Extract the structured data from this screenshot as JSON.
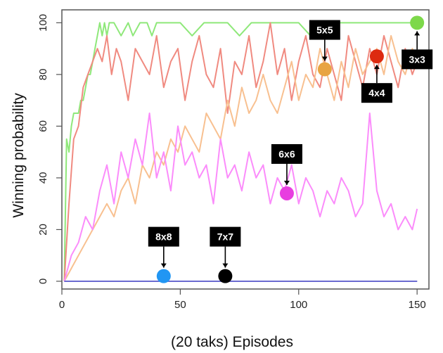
{
  "chart_data": {
    "type": "line",
    "xlabel": "(20 taks) Episodes",
    "ylabel": "Winning probability",
    "xlim": [
      0,
      155
    ],
    "ylim": [
      -3,
      105
    ],
    "x_ticks": [
      0,
      50,
      100,
      150
    ],
    "y_ticks": [
      0,
      20,
      40,
      60,
      80,
      100
    ],
    "x_tick_labels": [
      "0",
      "50",
      "100",
      "150"
    ],
    "y_tick_labels": [
      "0",
      "20",
      "40",
      "60",
      "80",
      "100"
    ],
    "grid": false,
    "legend": "none",
    "series": [
      {
        "key": "s3x3",
        "color": "#8fe87a",
        "x": [
          1,
          2,
          3,
          4,
          5,
          6,
          7,
          8,
          9,
          10,
          11,
          12,
          13,
          14,
          15,
          16,
          17,
          18,
          19,
          20,
          22,
          25,
          28,
          30,
          33,
          36,
          38,
          40,
          45,
          50,
          55,
          60,
          65,
          70,
          75,
          80,
          85,
          90,
          95,
          100,
          105,
          110,
          115,
          120,
          125,
          130,
          135,
          140,
          145,
          150
        ],
        "values": [
          0,
          55,
          50,
          60,
          65,
          65,
          65,
          70,
          70,
          75,
          80,
          80,
          85,
          90,
          95,
          100,
          95,
          100,
          95,
          100,
          100,
          95,
          100,
          95,
          100,
          100,
          95,
          100,
          100,
          100,
          95,
          100,
          100,
          100,
          95,
          100,
          100,
          100,
          100,
          100,
          95,
          100,
          100,
          100,
          100,
          100,
          100,
          100,
          100,
          100
        ]
      },
      {
        "key": "s4x4",
        "color": "#f08a80",
        "x": [
          1,
          3,
          5,
          7,
          9,
          11,
          13,
          15,
          17,
          19,
          21,
          23,
          25,
          28,
          31,
          34,
          37,
          40,
          43,
          46,
          49,
          52,
          55,
          58,
          61,
          64,
          67,
          70,
          73,
          76,
          79,
          82,
          85,
          88,
          91,
          94,
          97,
          100,
          103,
          106,
          109,
          112,
          115,
          118,
          121,
          124,
          127,
          130,
          133,
          136,
          139,
          142,
          145,
          148,
          150
        ],
        "values": [
          0,
          30,
          55,
          60,
          75,
          80,
          85,
          90,
          85,
          95,
          80,
          90,
          85,
          70,
          90,
          85,
          80,
          95,
          75,
          85,
          90,
          70,
          85,
          95,
          80,
          75,
          90,
          65,
          85,
          80,
          95,
          75,
          85,
          100,
          80,
          90,
          70,
          85,
          95,
          80,
          75,
          90,
          80,
          70,
          95,
          85,
          75,
          90,
          80,
          95,
          85,
          75,
          90,
          80,
          85
        ]
      },
      {
        "key": "s5x5",
        "color": "#f8c090",
        "x": [
          1,
          4,
          7,
          10,
          13,
          16,
          19,
          22,
          25,
          28,
          31,
          34,
          37,
          40,
          43,
          46,
          49,
          52,
          55,
          58,
          61,
          64,
          67,
          70,
          73,
          76,
          79,
          82,
          85,
          88,
          91,
          94,
          97,
          100,
          103,
          106,
          109,
          112,
          115,
          118,
          121,
          124,
          127,
          130,
          133,
          136,
          139,
          142,
          145,
          148,
          150
        ],
        "values": [
          0,
          5,
          10,
          15,
          20,
          25,
          30,
          25,
          35,
          40,
          30,
          45,
          40,
          50,
          45,
          55,
          50,
          60,
          55,
          50,
          65,
          60,
          55,
          70,
          60,
          75,
          65,
          70,
          80,
          70,
          65,
          75,
          85,
          70,
          80,
          75,
          90,
          80,
          70,
          85,
          75,
          90,
          80,
          85,
          90,
          80,
          95,
          85,
          80,
          90,
          85
        ]
      },
      {
        "key": "s6x6",
        "color": "#fb8cfb",
        "x": [
          1,
          4,
          7,
          10,
          13,
          16,
          19,
          22,
          25,
          28,
          31,
          34,
          37,
          40,
          43,
          46,
          49,
          52,
          55,
          58,
          61,
          64,
          67,
          70,
          73,
          76,
          79,
          82,
          85,
          88,
          91,
          94,
          97,
          100,
          103,
          106,
          109,
          112,
          115,
          118,
          121,
          124,
          127,
          130,
          133,
          136,
          139,
          142,
          145,
          148,
          150
        ],
        "values": [
          0,
          10,
          15,
          25,
          20,
          35,
          45,
          30,
          50,
          40,
          55,
          45,
          65,
          40,
          50,
          35,
          60,
          45,
          50,
          40,
          45,
          30,
          55,
          40,
          45,
          35,
          50,
          40,
          45,
          30,
          40,
          35,
          45,
          30,
          40,
          35,
          25,
          35,
          30,
          40,
          35,
          25,
          30,
          65,
          35,
          25,
          30,
          20,
          25,
          20,
          28
        ]
      },
      {
        "key": "s7x7",
        "color": "#6a6ad0",
        "x": [
          1,
          150
        ],
        "values": [
          0,
          0
        ]
      },
      {
        "key": "s8x8",
        "color": "#6a6ad0",
        "x": [
          1,
          150
        ],
        "values": [
          0,
          0
        ]
      }
    ],
    "markers": [
      {
        "label": "3x3",
        "x": 150,
        "y": 100,
        "color": "#7dd84a",
        "label_pos": "below"
      },
      {
        "label": "4x4",
        "x": 133,
        "y": 87,
        "color": "#dd2a10",
        "label_pos": "below"
      },
      {
        "label": "5x5",
        "x": 111,
        "y": 82,
        "color": "#e8a443",
        "label_pos": "above"
      },
      {
        "label": "6x6",
        "x": 95,
        "y": 34,
        "color": "#e83ee0",
        "label_pos": "above"
      },
      {
        "label": "7x7",
        "x": 69,
        "y": 2,
        "color": "#000000",
        "label_pos": "above"
      },
      {
        "label": "8x8",
        "x": 43,
        "y": 2,
        "color": "#2196f3",
        "label_pos": "above"
      }
    ]
  }
}
